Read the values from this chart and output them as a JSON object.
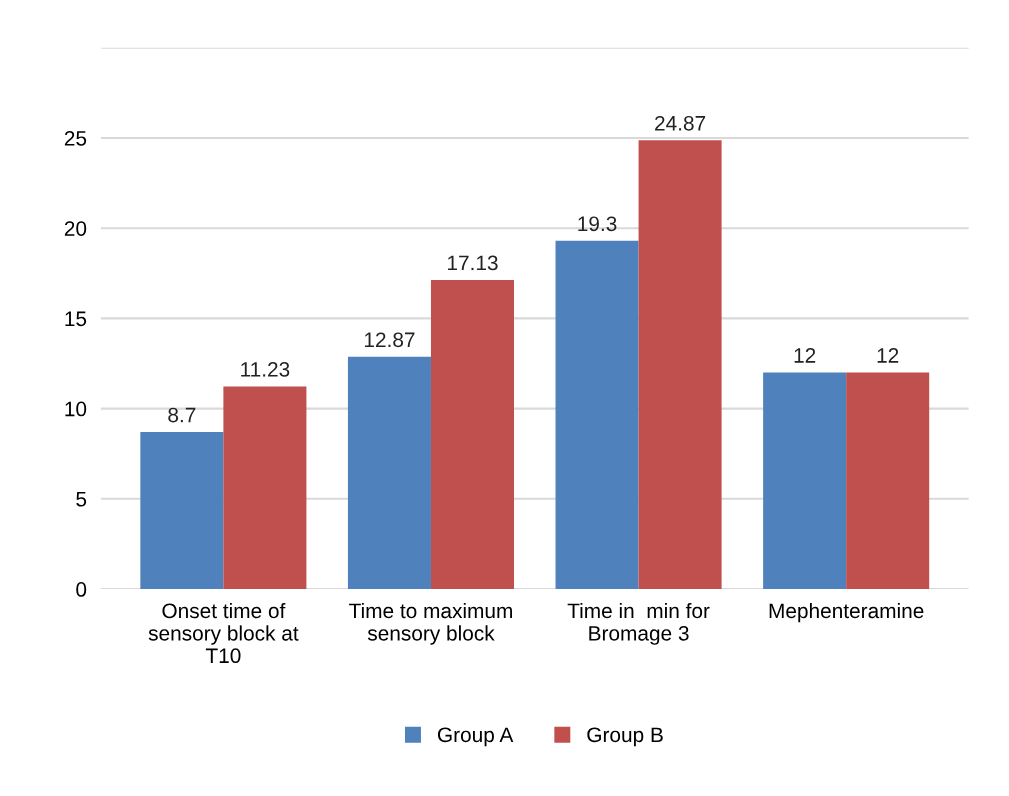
{
  "chart_data": {
    "type": "bar",
    "categories": [
      "Onset time of\nsensory block at\nT10",
      "Time to maximum\nsensory block",
      "Time in  min for\nBromage 3",
      "Mephenteramine"
    ],
    "series": [
      {
        "name": "Group A",
        "color": "#4f81bd",
        "values": [
          8.7,
          12.87,
          19.3,
          12
        ]
      },
      {
        "name": "Group B",
        "color": "#c0504d",
        "values": [
          11.23,
          17.13,
          24.87,
          12
        ]
      }
    ],
    "ylim": [
      0,
      30
    ],
    "yticks": [
      0,
      5,
      10,
      15,
      20,
      25,
      {
        "value": 30,
        "label": null
      }
    ],
    "grid": "y",
    "legend": "bottom",
    "data_labels": true
  }
}
